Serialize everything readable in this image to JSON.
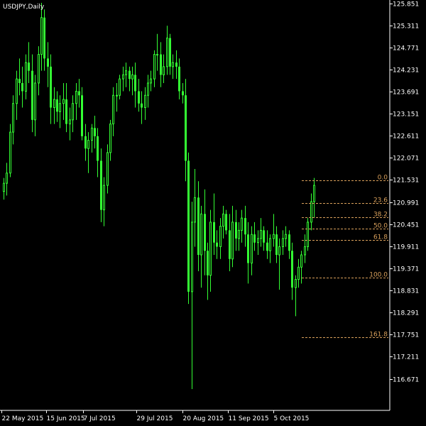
{
  "window": {
    "symbol_title": "USDJPY,Daily"
  },
  "colors": {
    "background": "#000000",
    "candles": "#33ff33",
    "axis": "#ffffff",
    "fibonacci": "#d9a05b"
  },
  "chart_data": {
    "type": "candlestick",
    "price_range": [
      116.42,
      125.86
    ],
    "y_ticks": [
      "125.851",
      "125.311",
      "124.771",
      "124.231",
      "123.691",
      "123.151",
      "122.611",
      "122.071",
      "121.531",
      "120.991",
      "120.451",
      "119.911",
      "119.371",
      "118.831",
      "118.291",
      "117.751",
      "117.211",
      "116.671"
    ],
    "x_tick_labels": [
      "22 May 2015",
      "15 Jun 2015",
      "7 Jul 2015",
      "29 Jul 2015",
      "20 Aug 2015",
      "11 Sep 2015",
      "5 Oct 2015"
    ],
    "fibonacci": {
      "start_price": 119.15,
      "end_price": 121.53,
      "levels": [
        {
          "label": "0.0",
          "ratio": 0.0
        },
        {
          "label": "23.6",
          "ratio": 0.236
        },
        {
          "label": "38.2",
          "ratio": 0.382
        },
        {
          "label": "50.0",
          "ratio": 0.5
        },
        {
          "label": "61.8",
          "ratio": 0.618
        },
        {
          "label": "100.0",
          "ratio": 1.0
        },
        {
          "label": "161.8",
          "ratio": 1.618
        }
      ]
    },
    "candles": [
      [
        121.25,
        121.58,
        121.05,
        121.45
      ],
      [
        121.45,
        121.95,
        121.15,
        121.7
      ],
      [
        121.7,
        122.9,
        121.6,
        122.7
      ],
      [
        122.7,
        123.6,
        122.4,
        123.4
      ],
      [
        123.4,
        124.2,
        123.0,
        124.0
      ],
      [
        124.0,
        124.5,
        123.6,
        123.9
      ],
      [
        123.9,
        124.3,
        123.3,
        123.7
      ],
      [
        123.7,
        124.6,
        123.5,
        124.4
      ],
      [
        124.4,
        124.9,
        123.9,
        124.2
      ],
      [
        124.2,
        124.6,
        122.7,
        123.0
      ],
      [
        123.0,
        124.1,
        122.6,
        123.9
      ],
      [
        123.9,
        124.8,
        123.6,
        124.6
      ],
      [
        124.6,
        125.86,
        124.2,
        125.5
      ],
      [
        125.5,
        125.7,
        124.2,
        124.5
      ],
      [
        124.5,
        124.9,
        123.8,
        124.3
      ],
      [
        124.3,
        124.6,
        122.9,
        123.3
      ],
      [
        123.3,
        123.8,
        122.9,
        123.5
      ],
      [
        123.5,
        123.7,
        122.95,
        123.2
      ],
      [
        123.2,
        123.6,
        122.8,
        123.4
      ],
      [
        123.4,
        123.9,
        123.0,
        123.5
      ],
      [
        123.5,
        123.9,
        122.7,
        122.9
      ],
      [
        122.9,
        123.3,
        122.5,
        123.0
      ],
      [
        123.0,
        123.6,
        122.7,
        123.4
      ],
      [
        123.4,
        123.9,
        123.0,
        123.7
      ],
      [
        123.7,
        124.0,
        123.3,
        123.6
      ],
      [
        123.6,
        123.8,
        122.5,
        122.6
      ],
      [
        122.6,
        122.9,
        122.0,
        122.3
      ],
      [
        122.3,
        122.7,
        121.7,
        122.5
      ],
      [
        122.5,
        122.9,
        122.2,
        122.8
      ],
      [
        122.8,
        123.1,
        122.3,
        122.6
      ],
      [
        122.6,
        122.8,
        121.6,
        122.0
      ],
      [
        122.0,
        122.3,
        120.5,
        120.8
      ],
      [
        120.8,
        121.6,
        120.4,
        121.4
      ],
      [
        121.4,
        122.4,
        121.2,
        122.2
      ],
      [
        122.2,
        123.0,
        122.0,
        122.9
      ],
      [
        122.9,
        123.8,
        122.6,
        123.6
      ],
      [
        123.6,
        123.9,
        123.2,
        123.6
      ],
      [
        123.6,
        124.1,
        123.5,
        124.0
      ],
      [
        124.0,
        124.3,
        123.7,
        124.1
      ],
      [
        124.1,
        124.4,
        123.8,
        124.2
      ],
      [
        124.2,
        124.3,
        123.7,
        124.0
      ],
      [
        124.0,
        124.3,
        123.6,
        124.1
      ],
      [
        124.1,
        124.4,
        123.3,
        123.7
      ],
      [
        123.7,
        124.0,
        123.2,
        123.4
      ],
      [
        123.4,
        123.7,
        122.9,
        123.3
      ],
      [
        123.3,
        123.8,
        123.0,
        123.6
      ],
      [
        123.6,
        124.1,
        123.3,
        123.9
      ],
      [
        123.9,
        124.2,
        123.7,
        124.0
      ],
      [
        124.0,
        124.7,
        123.8,
        124.6
      ],
      [
        124.6,
        125.1,
        124.2,
        124.6
      ],
      [
        124.6,
        124.9,
        123.8,
        124.1
      ],
      [
        124.1,
        124.6,
        123.9,
        124.3
      ],
      [
        124.3,
        125.3,
        124.1,
        125.0
      ],
      [
        125.0,
        125.1,
        124.1,
        124.3
      ],
      [
        124.3,
        124.6,
        124.0,
        124.4
      ],
      [
        124.4,
        124.7,
        124.0,
        124.3
      ],
      [
        124.3,
        124.5,
        123.5,
        123.7
      ],
      [
        123.7,
        123.9,
        123.4,
        123.6
      ],
      [
        123.6,
        124.0,
        121.5,
        122.0
      ],
      [
        122.0,
        122.2,
        118.5,
        118.8
      ],
      [
        118.8,
        121.0,
        116.42,
        120.5
      ],
      [
        120.5,
        121.8,
        119.9,
        121.1
      ],
      [
        121.1,
        121.5,
        119.3,
        119.7
      ],
      [
        119.7,
        120.9,
        118.9,
        120.7
      ],
      [
        120.7,
        121.3,
        119.2,
        119.8
      ],
      [
        119.8,
        120.0,
        118.6,
        119.2
      ],
      [
        119.2,
        120.8,
        118.8,
        120.5
      ],
      [
        120.5,
        121.2,
        119.7,
        120.0
      ],
      [
        120.0,
        120.3,
        119.6,
        119.9
      ],
      [
        119.9,
        120.6,
        119.6,
        120.4
      ],
      [
        120.4,
        120.9,
        120.1,
        120.7
      ],
      [
        120.7,
        120.8,
        120.2,
        120.3
      ],
      [
        120.3,
        120.7,
        119.3,
        119.6
      ],
      [
        119.6,
        120.9,
        119.4,
        120.5
      ],
      [
        120.5,
        120.8,
        119.8,
        120.1
      ],
      [
        120.1,
        120.5,
        119.8,
        120.3
      ],
      [
        120.3,
        120.8,
        120.0,
        120.6
      ],
      [
        120.6,
        120.9,
        119.9,
        120.2
      ],
      [
        120.2,
        120.5,
        119.0,
        119.5
      ],
      [
        119.5,
        120.4,
        119.2,
        120.2
      ],
      [
        120.2,
        120.5,
        119.8,
        120.0
      ],
      [
        120.0,
        120.3,
        119.7,
        120.1
      ],
      [
        120.1,
        120.6,
        119.9,
        120.3
      ],
      [
        120.3,
        120.4,
        119.8,
        120.0
      ],
      [
        120.0,
        120.3,
        119.6,
        119.8
      ],
      [
        119.8,
        120.2,
        119.5,
        120.1
      ],
      [
        120.1,
        120.7,
        119.9,
        120.2
      ],
      [
        120.2,
        120.4,
        119.5,
        119.7
      ],
      [
        119.7,
        120.1,
        118.85,
        119.9
      ],
      [
        119.9,
        120.3,
        119.7,
        120.1
      ],
      [
        120.1,
        120.4,
        119.9,
        120.2
      ],
      [
        120.2,
        120.3,
        119.6,
        119.8
      ],
      [
        119.8,
        120.0,
        118.6,
        118.9
      ],
      [
        118.9,
        119.2,
        118.2,
        119.1
      ],
      [
        119.1,
        119.6,
        118.9,
        119.4
      ],
      [
        119.4,
        119.8,
        119.0,
        119.7
      ],
      [
        119.7,
        120.2,
        119.5,
        119.9
      ],
      [
        119.9,
        120.6,
        119.8,
        120.5
      ],
      [
        120.5,
        121.2,
        120.3,
        121.0
      ],
      [
        121.0,
        121.58,
        120.6,
        121.4
      ]
    ]
  }
}
